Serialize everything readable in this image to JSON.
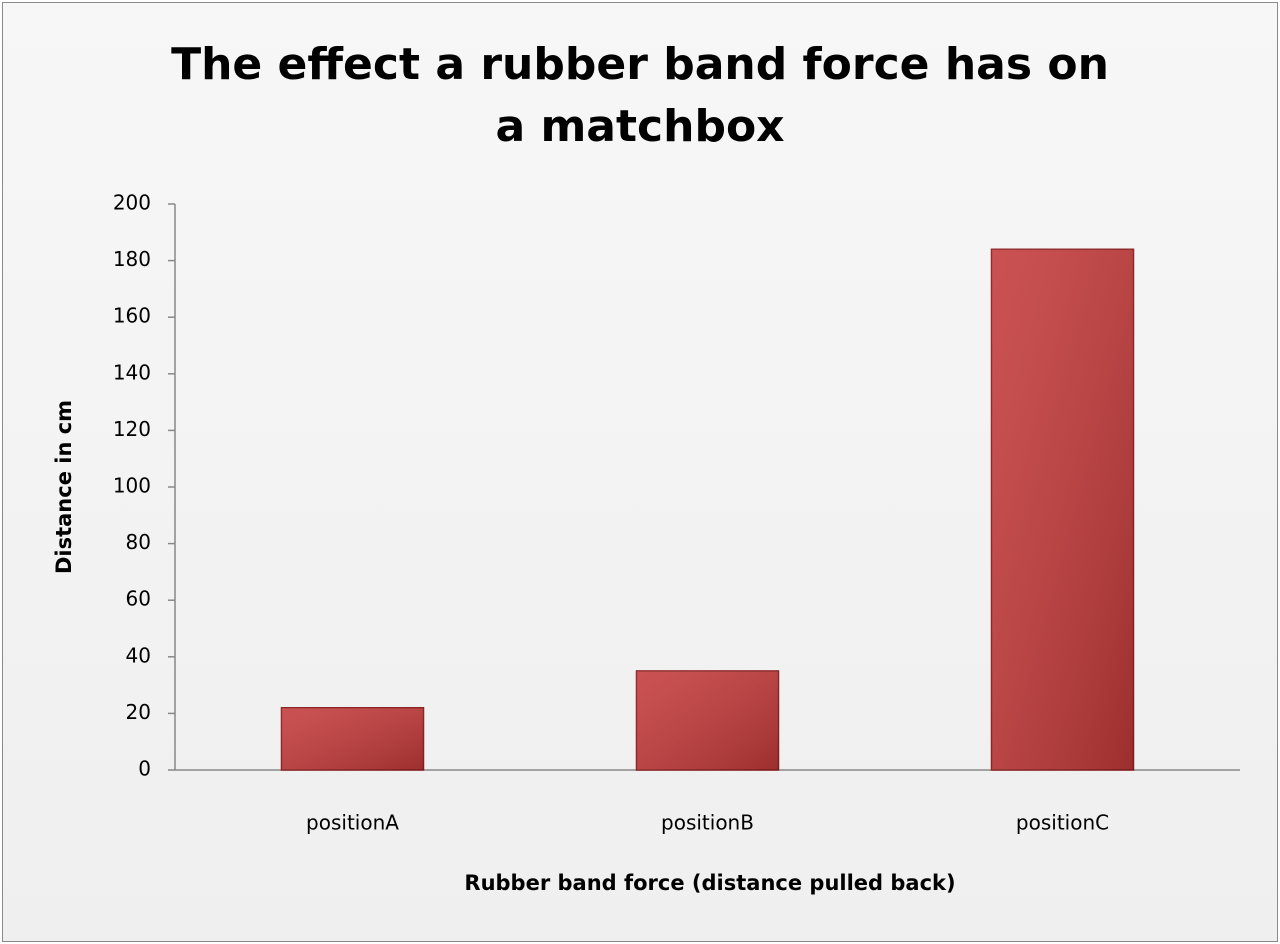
{
  "chart_data": {
    "type": "bar",
    "title": "The effect a rubber band force has on a matchbox",
    "x_label": "Rubber band force (distance pulled back)",
    "y_label": "Distance in cm",
    "categories": [
      "positionA",
      "positionB",
      "positionC"
    ],
    "values": [
      22,
      35,
      184
    ],
    "color": "#c43a3a",
    "ylim": [
      0,
      200
    ],
    "yticks": [
      0,
      20,
      40,
      60,
      80,
      100,
      120,
      140,
      160,
      180,
      200
    ],
    "grid": false
  }
}
